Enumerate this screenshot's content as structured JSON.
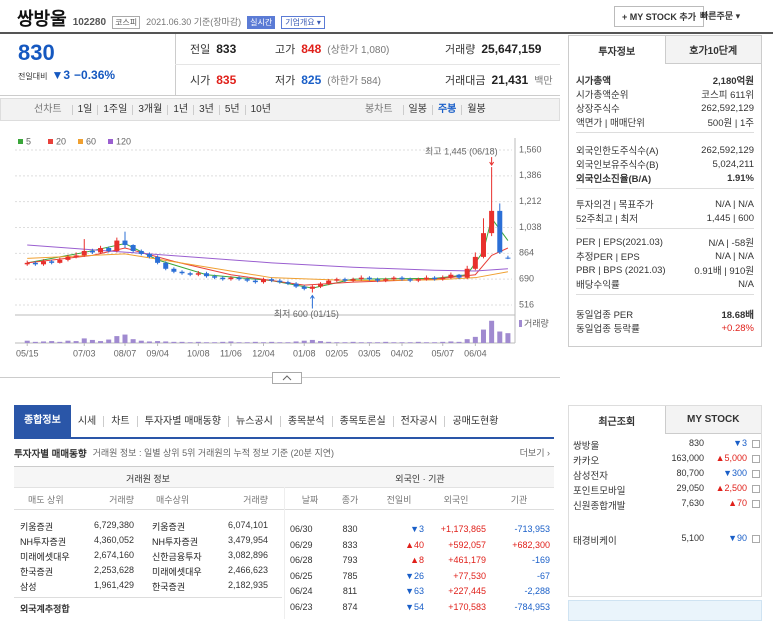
{
  "header": {
    "name": "쌍방울",
    "code": "102280",
    "market": "코스피",
    "date": "2021.06.30 기준(장마감)",
    "realtime": "실시간",
    "overview": "기업개요 ▾",
    "mystock": "+ MY STOCK 추가",
    "order": "빠른주문 ▾"
  },
  "quote": {
    "price": "830",
    "change_label": "전일대비",
    "change": "▼3",
    "change_rate": "−0.36%",
    "cells": [
      {
        "label": "전일",
        "value": "833",
        "color": "#222"
      },
      {
        "label": "고가",
        "value": "848",
        "note": "(상한가 1,080)",
        "color": "#e0201a"
      },
      {
        "label": "거래량",
        "value": "25,647,159",
        "color": "#222"
      },
      {
        "label": "시가",
        "value": "835",
        "color": "#e0201a"
      },
      {
        "label": "저가",
        "value": "825",
        "note": "(하한가 584)",
        "color": "#1a5fc8"
      },
      {
        "label": "거래대금",
        "value": "21,431",
        "note": "백만",
        "color": "#222"
      }
    ]
  },
  "chart_tabs": {
    "line": [
      "선차트",
      "1일",
      "1주일",
      "3개월",
      "1년",
      "3년",
      "5년",
      "10년"
    ],
    "candle": [
      "봉차트",
      "일봉",
      "주봉",
      "월봉"
    ]
  },
  "chart_data": {
    "type": "candlestick",
    "up_color": "#e8302d",
    "down_color": "#2b6fd6",
    "open": [
      790,
      800,
      790,
      810,
      800,
      820,
      840,
      850,
      880,
      870,
      900,
      880,
      950,
      920,
      880,
      860,
      840,
      800,
      760,
      740,
      730,
      720,
      730,
      710,
      700,
      690,
      700,
      690,
      680,
      670,
      690,
      680,
      670,
      660,
      640,
      625,
      640,
      660,
      680,
      690,
      680,
      690,
      700,
      690,
      680,
      690,
      700,
      690,
      680,
      690,
      700,
      690,
      700,
      720,
      700,
      760,
      840,
      1000,
      1150,
      835
    ],
    "high": [
      815,
      810,
      825,
      820,
      835,
      855,
      870,
      960,
      895,
      915,
      910,
      970,
      1010,
      925,
      890,
      870,
      850,
      810,
      770,
      750,
      740,
      745,
      740,
      720,
      710,
      710,
      710,
      700,
      690,
      700,
      700,
      690,
      680,
      670,
      650,
      650,
      670,
      690,
      700,
      700,
      700,
      715,
      710,
      700,
      700,
      710,
      710,
      700,
      700,
      715,
      710,
      715,
      735,
      725,
      780,
      870,
      1100,
      1445,
      1200,
      848
    ],
    "low": [
      780,
      780,
      780,
      790,
      795,
      810,
      830,
      840,
      860,
      860,
      870,
      870,
      900,
      870,
      850,
      830,
      790,
      750,
      730,
      720,
      710,
      710,
      700,
      690,
      680,
      680,
      680,
      670,
      660,
      660,
      670,
      660,
      650,
      630,
      615,
      600,
      630,
      650,
      670,
      670,
      670,
      680,
      680,
      670,
      670,
      680,
      680,
      670,
      670,
      680,
      680,
      680,
      690,
      690,
      690,
      750,
      830,
      980,
      860,
      825
    ],
    "close": [
      800,
      790,
      810,
      800,
      820,
      840,
      850,
      880,
      870,
      900,
      880,
      950,
      920,
      880,
      860,
      840,
      800,
      760,
      740,
      730,
      720,
      730,
      710,
      700,
      690,
      700,
      690,
      680,
      670,
      690,
      680,
      670,
      660,
      640,
      625,
      640,
      660,
      680,
      690,
      680,
      690,
      700,
      690,
      680,
      690,
      700,
      690,
      680,
      690,
      700,
      690,
      700,
      720,
      700,
      760,
      840,
      1000,
      1150,
      870,
      830
    ],
    "volume": [
      6000000,
      3000000,
      4000000,
      5000000,
      3000000,
      6000000,
      5000000,
      12000000,
      8000000,
      5000000,
      9000000,
      18000000,
      22000000,
      10000000,
      6000000,
      4000000,
      5000000,
      4000000,
      3000000,
      3000000,
      2000000,
      3000000,
      2000000,
      2000000,
      3000000,
      4000000,
      2000000,
      2000000,
      3000000,
      2000000,
      3000000,
      2000000,
      2000000,
      4000000,
      6000000,
      8000000,
      5000000,
      3000000,
      2000000,
      2000000,
      3000000,
      2000000,
      2000000,
      2000000,
      3000000,
      2000000,
      2000000,
      2000000,
      3000000,
      2000000,
      2000000,
      3000000,
      4000000,
      3000000,
      10000000,
      16000000,
      35000000,
      58000000,
      30000000,
      25647159
    ],
    "volume_color": "#a08ad0",
    "volume_label": "거래량",
    "vylim": [
      0,
      60000000
    ],
    "xlim": [
      -1.5,
      59.5
    ],
    "ylim": [
      516,
      1560
    ],
    "yticks": [
      {
        "value": 1560,
        "label": "1,560"
      },
      {
        "value": 1386,
        "label": "1,386"
      },
      {
        "value": 1212,
        "label": "1,212"
      },
      {
        "value": 1038,
        "label": "1,038"
      },
      864,
      690,
      516
    ],
    "xticks": [
      {
        "value": 0,
        "label": "05/15"
      },
      {
        "value": 7,
        "label": "07/03"
      },
      {
        "value": 12,
        "label": "08/07"
      },
      {
        "value": 16,
        "label": "09/04"
      },
      {
        "value": 21,
        "label": "10/08"
      },
      {
        "value": 25,
        "label": "11/06"
      },
      {
        "value": 29,
        "label": "12/04"
      },
      {
        "value": 34,
        "label": "01/08"
      },
      {
        "value": 38,
        "label": "02/05"
      },
      {
        "value": 42,
        "label": "03/05"
      },
      {
        "value": 46,
        "label": "04/02"
      },
      {
        "value": 51,
        "label": "05/07"
      },
      {
        "value": 55,
        "label": "06/04"
      }
    ],
    "series": [
      {
        "name": "5",
        "color": "#3aa63a",
        "x": [
          0,
          7,
          12,
          16,
          22,
          30,
          35,
          40,
          50,
          54,
          56,
          57,
          59
        ],
        "values": [
          800,
          870,
          930,
          820,
          720,
          680,
          630,
          690,
          695,
          720,
          880,
          1100,
          950
        ]
      },
      {
        "name": "20",
        "color": "#e8413a",
        "x": [
          0,
          8,
          12,
          18,
          25,
          34,
          40,
          50,
          55,
          57,
          59
        ],
        "values": [
          800,
          850,
          900,
          810,
          720,
          650,
          670,
          690,
          720,
          850,
          900
        ]
      },
      {
        "name": "60",
        "color": "#f0a030",
        "x": [
          0,
          12,
          20,
          30,
          40,
          50,
          55,
          59
        ],
        "values": [
          830,
          860,
          790,
          700,
          680,
          685,
          700,
          740
        ]
      },
      {
        "name": "120",
        "color": "#9a5fd0",
        "x": [
          0,
          10,
          20,
          30,
          40,
          50,
          55,
          59
        ],
        "values": [
          920,
          880,
          840,
          800,
          770,
          750,
          745,
          760
        ]
      }
    ],
    "annotations": [
      {
        "text": "최고 1,445 (06/18)",
        "x": 57,
        "y": 1445,
        "color": "#e8302d"
      },
      {
        "text": "최저 600 (01/15)",
        "x": 35,
        "y": 600,
        "color": "#2b6fd6"
      }
    ]
  },
  "invest_info": {
    "tabs": [
      "투자정보",
      "호가10단계"
    ],
    "groups": [
      [
        [
          "시가총액",
          "2,180억원"
        ],
        [
          "시가총액순위",
          "코스피 611위"
        ],
        [
          "상장주식수",
          "262,592,129"
        ],
        [
          "액면가 | 매매단위",
          "500원 | 1주"
        ]
      ],
      [
        [
          "외국인한도주식수(A)",
          "262,592,129"
        ],
        [
          "외국인보유주식수(B)",
          "5,024,211"
        ],
        [
          "외국인소진율(B/A)",
          "1.91%"
        ]
      ],
      [
        [
          "투자의견 | 목표주가",
          "N/A | N/A"
        ],
        [
          "52주최고 | 최저",
          "1,445 | 600"
        ]
      ],
      [
        [
          "PER | EPS(2021.03)",
          "N/A | -58원"
        ],
        [
          "추정PER | EPS",
          "N/A | N/A"
        ],
        [
          "PBR | BPS (2021.03)",
          "0.91배 | 910원"
        ],
        [
          "배당수익률",
          "N/A"
        ]
      ],
      [
        [
          "동일업종 PER",
          "18.68배"
        ],
        [
          "동일업종 등락률",
          "+0.28%"
        ]
      ]
    ]
  },
  "nav_tabs": [
    "종합정보",
    "시세",
    "차트",
    "투자자별 매매동향",
    "뉴스공시",
    "종목분석",
    "종목토론실",
    "전자공시",
    "공매도현황"
  ],
  "trading": {
    "title": "투자자별 매매동향",
    "desc": "거래원 정보 : 일별 상위 5위 거래원의 누적 정보 기준 (20분 지연)",
    "more": "더보기 ›",
    "group_heads": [
      "거래원 정보",
      "외국인 · 기관"
    ],
    "broker_head": [
      "매도 상위",
      "거래량",
      "매수상위",
      "거래량"
    ],
    "broker_rows": [
      [
        "키움증권",
        "6,729,380",
        "키움증권",
        "6,074,101"
      ],
      [
        "NH투자증권",
        "4,360,052",
        "NH투자증권",
        "3,479,954"
      ],
      [
        "미래에셋대우",
        "2,674,160",
        "신한금융투자",
        "3,082,896"
      ],
      [
        "한국증권",
        "2,253,628",
        "미래에셋대우",
        "2,466,623"
      ],
      [
        "삼성",
        "1,961,429",
        "한국증권",
        "2,182,935"
      ]
    ],
    "foreign_sum": "외국계추정합",
    "investor_head": [
      "날짜",
      "종가",
      "전일비",
      "외국인",
      "기관"
    ],
    "investor_rows": [
      [
        "06/30",
        "830",
        "▼3",
        "+1,173,865",
        "-713,953"
      ],
      [
        "06/29",
        "833",
        "▲40",
        "+592,057",
        "+682,300"
      ],
      [
        "06/28",
        "793",
        "▲8",
        "+461,179",
        "-169"
      ],
      [
        "06/25",
        "785",
        "▼26",
        "+77,530",
        "-67"
      ],
      [
        "06/24",
        "811",
        "▼63",
        "+227,445",
        "-2,288"
      ],
      [
        "06/23",
        "874",
        "▼54",
        "+170,583",
        "-784,953"
      ]
    ]
  },
  "recent": {
    "tabs": [
      "최근조회",
      "MY STOCK"
    ],
    "rows": [
      [
        "쌍방울",
        "830",
        "▼3"
      ],
      [
        "카카오",
        "163,000",
        "▲5,000"
      ],
      [
        "삼성전자",
        "80,700",
        "▼300"
      ],
      [
        "포인트모바일",
        "29,050",
        "▲2,500"
      ],
      [
        "신원종합개발",
        "7,630",
        "▲70"
      ],
      [
        "태경비케이",
        "5,100",
        "▼90"
      ]
    ]
  }
}
